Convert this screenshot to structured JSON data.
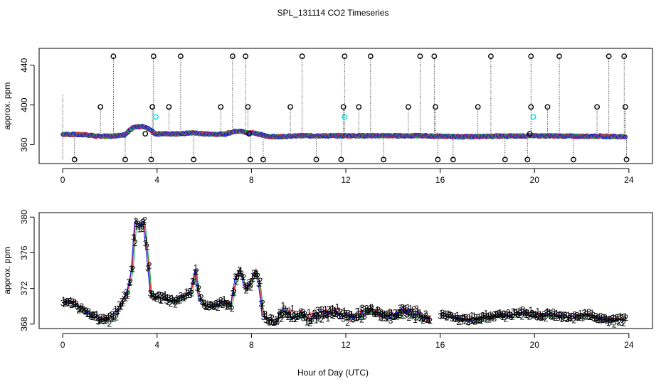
{
  "title": "SPL_131114  CO2 Timeseries",
  "xlabel": "Hour of Day (UTC)",
  "colors": {
    "s1": "#e8202a",
    "s2": "#22b14c",
    "s3": "#1414e6",
    "filt": "#000000",
    "cyan": "#00d8d8",
    "axis": "#000000"
  },
  "chart_data": [
    {
      "type": "scatter",
      "panel": "top",
      "ylabel": "approx. ppm",
      "xlim": [
        -1,
        25
      ],
      "ylim": [
        341,
        457
      ],
      "xticks": [
        0,
        4,
        8,
        12,
        16,
        20,
        24
      ],
      "yticks": [
        360,
        400,
        440
      ],
      "baseline_knots": [
        [
          0,
          370.5
        ],
        [
          1,
          370
        ],
        [
          1.4,
          368.5
        ],
        [
          2,
          368.5
        ],
        [
          2.6,
          370
        ],
        [
          3,
          378
        ],
        [
          3.4,
          378
        ],
        [
          3.7,
          375
        ],
        [
          3.9,
          371
        ],
        [
          4.5,
          371
        ],
        [
          5,
          371
        ],
        [
          5.5,
          372
        ],
        [
          5.9,
          371
        ],
        [
          6.8,
          370.5
        ],
        [
          7.2,
          373
        ],
        [
          7.4,
          374
        ],
        [
          7.8,
          372
        ],
        [
          8.1,
          372
        ],
        [
          8.4,
          370
        ],
        [
          8.6,
          368.5
        ],
        [
          9,
          368
        ],
        [
          10,
          369
        ],
        [
          11,
          369
        ],
        [
          12,
          369
        ],
        [
          14,
          369
        ],
        [
          15.3,
          369
        ],
        [
          16,
          368.5
        ],
        [
          17,
          368
        ],
        [
          18,
          368.5
        ],
        [
          20,
          369
        ],
        [
          22,
          368.5
        ],
        [
          23,
          368.5
        ],
        [
          23.8,
          368
        ]
      ],
      "filtered_high": [
        2.15,
        3.85,
        5.0,
        7.2,
        7.75,
        10.15,
        11.95,
        13.05,
        15.15,
        15.75,
        18.15,
        19.85,
        21.05,
        23.15,
        23.8
      ],
      "filtered_mid": [
        1.6,
        3.8,
        4.5,
        6.7,
        7.85,
        9.65,
        11.9,
        12.55,
        14.65,
        15.8,
        17.6,
        19.85,
        20.55,
        22.65,
        23.85
      ],
      "filtered_low": [
        0.5,
        2.65,
        3.75,
        5.55,
        7.95,
        8.5,
        10.75,
        11.8,
        13.6,
        15.9,
        16.55,
        18.75,
        19.7,
        21.65,
        23.9
      ],
      "filtered_mid_small": [
        3.5,
        7.9,
        19.8
      ],
      "cyan_points": [
        [
          3.95,
          388
        ],
        [
          11.95,
          388
        ],
        [
          19.95,
          388
        ]
      ]
    },
    {
      "type": "line",
      "panel": "bottom",
      "ylabel": "approx. ppm",
      "xlim": [
        -1,
        25
      ],
      "ylim": [
        367.5,
        380.5
      ],
      "xticks": [
        0,
        4,
        8,
        12,
        16,
        20,
        24
      ],
      "yticks": [
        368,
        372,
        376,
        380
      ],
      "series_labels": [
        "1",
        "2",
        "3"
      ],
      "knots": [
        [
          0,
          370.5
        ],
        [
          0.3,
          370.5
        ],
        [
          0.6,
          370
        ],
        [
          0.9,
          369.5
        ],
        [
          1.2,
          369
        ],
        [
          1.5,
          368.5
        ],
        [
          1.8,
          368.5
        ],
        [
          2.1,
          368.8
        ],
        [
          2.4,
          370
        ],
        [
          2.7,
          371.5
        ],
        [
          2.9,
          374
        ],
        [
          3.05,
          379.5
        ],
        [
          3.2,
          379
        ],
        [
          3.4,
          379.5
        ],
        [
          3.55,
          376
        ],
        [
          3.7,
          371.5
        ],
        [
          3.85,
          371
        ],
        [
          4.2,
          371
        ],
        [
          4.6,
          370.5
        ],
        [
          5,
          371
        ],
        [
          5.4,
          371.5
        ],
        [
          5.6,
          374
        ],
        [
          5.75,
          371
        ],
        [
          6,
          370
        ],
        [
          6.4,
          370
        ],
        [
          6.8,
          370.5
        ],
        [
          7.1,
          370
        ],
        [
          7.3,
          373
        ],
        [
          7.5,
          374
        ],
        [
          7.7,
          372
        ],
        [
          7.9,
          372.5
        ],
        [
          8.15,
          374
        ],
        [
          8.3,
          372.5
        ],
        [
          8.45,
          369
        ],
        [
          8.7,
          368.5
        ],
        [
          9,
          368.3
        ],
        [
          9.3,
          369.5
        ],
        [
          9.6,
          369
        ],
        [
          10,
          369
        ],
        [
          10.5,
          368.8
        ],
        [
          11,
          369
        ],
        [
          11.5,
          369.5
        ],
        [
          12,
          368.8
        ],
        [
          12.5,
          369
        ],
        [
          13,
          369.5
        ],
        [
          13.5,
          369
        ],
        [
          14,
          369
        ],
        [
          14.5,
          369.5
        ],
        [
          15,
          369
        ],
        [
          15.5,
          368.5
        ],
        [
          16,
          369
        ],
        [
          16.5,
          368.8
        ],
        [
          17,
          368.5
        ],
        [
          17.5,
          368.5
        ],
        [
          18,
          368.8
        ],
        [
          18.5,
          369
        ],
        [
          19,
          369
        ],
        [
          19.5,
          369.2
        ],
        [
          20,
          369
        ],
        [
          20.5,
          369
        ],
        [
          21,
          369
        ],
        [
          21.5,
          368.8
        ],
        [
          22,
          369
        ],
        [
          22.5,
          368.8
        ],
        [
          23,
          368.5
        ],
        [
          23.5,
          368.5
        ],
        [
          23.8,
          368.5
        ]
      ],
      "gap": [
        15.6,
        16.0
      ]
    }
  ]
}
